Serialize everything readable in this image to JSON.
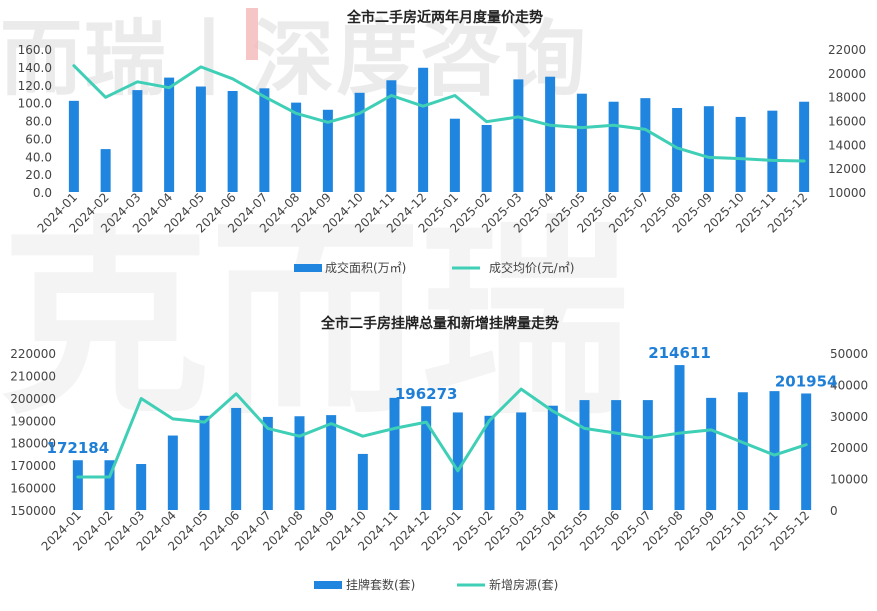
{
  "watermark": {
    "top_text": "而瑞丨深度咨询",
    "mid_text": "克而瑞"
  },
  "colors": {
    "bar": "#1f85de",
    "line": "#3fcfb6",
    "axis_text": "#444444",
    "title": "#222222",
    "peak_label": "#1f7fd6"
  },
  "chart_data": [
    {
      "type": "bar+line",
      "title": "全市二手房近两年月度量价走势",
      "categories": [
        "2024-01",
        "2024-02",
        "2024-03",
        "2024-04",
        "2024-05",
        "2024-06",
        "2024-07",
        "2024-08",
        "2024-09",
        "2024-10",
        "2024-11",
        "2024-12",
        "2025-01",
        "2025-02",
        "2025-03",
        "2025-04",
        "2025-05",
        "2025-06",
        "2025-07",
        "2025-08",
        "2025-09",
        "2025-10",
        "2025-11",
        "2025-12"
      ],
      "y_left": {
        "min": 0,
        "max": 160,
        "step": 20,
        "ticks": [
          "0.0",
          "20.0",
          "40.0",
          "60.0",
          "80.0",
          "100.0",
          "120.0",
          "140.0",
          "160.0"
        ]
      },
      "y_right": {
        "min": 10000,
        "max": 22000,
        "step": 2000,
        "ticks": [
          "10000",
          "12000",
          "14000",
          "16000",
          "18000",
          "20000",
          "22000"
        ]
      },
      "series": [
        {
          "name": "成交面积(万㎡)",
          "kind": "bar",
          "axis": "left",
          "values": [
            102,
            48,
            114,
            128,
            118,
            113,
            116,
            100,
            92,
            111,
            125,
            139,
            82,
            75,
            126,
            129,
            110,
            101,
            105,
            94,
            96,
            84,
            91,
            101
          ]
        },
        {
          "name": "成交均价(元/㎡)",
          "kind": "line",
          "axis": "right",
          "values": [
            20600,
            17950,
            19250,
            18750,
            20500,
            19500,
            18000,
            16600,
            15850,
            16600,
            18100,
            17200,
            18100,
            15900,
            16300,
            15600,
            15400,
            15600,
            15250,
            13700,
            12900,
            12800,
            12650,
            12600
          ]
        }
      ],
      "legend": "bottom"
    },
    {
      "type": "bar+line",
      "title": "全市二手房挂牌总量和新增挂牌量走势",
      "categories": [
        "2024-01",
        "2024-02",
        "2024-03",
        "2024-04",
        "2024-05",
        "2024-06",
        "2024-07",
        "2024-08",
        "2024-09",
        "2024-10",
        "2024-11",
        "2024-12",
        "2025-01",
        "2025-02",
        "2025-03",
        "2025-04",
        "2025-05",
        "2025-06",
        "2025-07",
        "2025-08",
        "2025-09",
        "2025-10",
        "2025-11",
        "2025-12"
      ],
      "y_left": {
        "min": 150000,
        "max": 220000,
        "step": 10000,
        "ticks": [
          "150000",
          "160000",
          "170000",
          "180000",
          "190000",
          "200000",
          "210000",
          "220000"
        ]
      },
      "y_right": {
        "min": 0,
        "max": 50000,
        "step": 10000,
        "ticks": [
          "0",
          "10000",
          "20000",
          "30000",
          "40000",
          "50000"
        ]
      },
      "series": [
        {
          "name": "挂牌套数(套)",
          "kind": "bar",
          "axis": "left",
          "values": [
            172184,
            172184,
            170500,
            183200,
            192000,
            195500,
            191500,
            191800,
            192300,
            175000,
            200000,
            196273,
            193500,
            192000,
            193500,
            196500,
            199000,
            199000,
            199000,
            214611,
            200000,
            202500,
            203000,
            201954
          ]
        },
        {
          "name": "新增房源(套)",
          "kind": "line",
          "axis": "right",
          "values": [
            10500,
            10500,
            35500,
            29000,
            28000,
            37000,
            26000,
            23500,
            27500,
            23500,
            26000,
            28000,
            12500,
            28500,
            38500,
            31500,
            26000,
            24500,
            23000,
            24500,
            25500,
            21500,
            17500,
            20800
          ]
        }
      ],
      "data_labels": [
        {
          "index": 0,
          "text": "172184"
        },
        {
          "index": 11,
          "text": "196273"
        },
        {
          "index": 19,
          "text": "214611"
        },
        {
          "index": 23,
          "text": "201954"
        }
      ],
      "legend": "bottom"
    }
  ]
}
